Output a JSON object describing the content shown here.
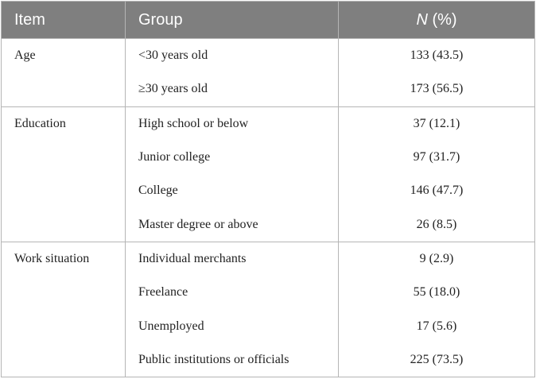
{
  "table": {
    "header": [
      "Item",
      "Group",
      {
        "italic": "N",
        "rest": "(%)"
      }
    ],
    "groups": [
      {
        "item": "Age",
        "rows": [
          [
            "<30 years old",
            "133 (43.5)"
          ],
          [
            "≥30 years old",
            "173 (56.5)"
          ]
        ]
      },
      {
        "item": "Education",
        "rows": [
          [
            "High school or below",
            "37 (12.1)"
          ],
          [
            "Junior college",
            "97 (31.7)"
          ],
          [
            "College",
            "146 (47.7)"
          ],
          [
            "Master degree or above",
            "26 (8.5)"
          ]
        ]
      },
      {
        "item": "Work situation",
        "rows": [
          [
            "Individual merchants",
            "9 (2.9)"
          ],
          [
            "Freelance",
            "55 (18.0)"
          ],
          [
            "Unemployed",
            "17 (5.6)"
          ],
          [
            "Public institutions or officials",
            "225 (73.5)"
          ]
        ]
      }
    ]
  }
}
